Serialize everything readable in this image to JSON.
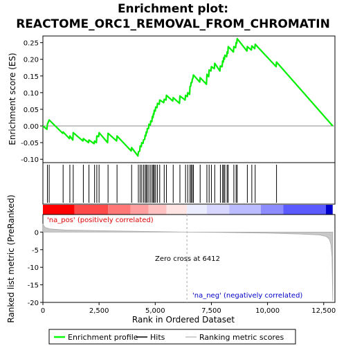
{
  "chart_data": {
    "type": "line",
    "title_line1": "Enrichment plot:",
    "title_line2": "REACTOME_ORC1_REMOVAL_FROM_CHROMATIN",
    "xlabel": "Rank in Ordered Dataset",
    "es_ylabel": "Enrichment score (ES)",
    "metric_ylabel": "Ranked list metric (PreRanked)",
    "xlim": [
      0,
      13000
    ],
    "es_ylim": [
      -0.11,
      0.27
    ],
    "metric_ylim": [
      -20,
      5
    ],
    "x_ticks": [
      0,
      2500,
      5000,
      7500,
      10000,
      12500
    ],
    "x_tick_labels": [
      "0",
      "2,500",
      "5,000",
      "7,500",
      "10,000",
      "12,500"
    ],
    "es_ticks": [
      -0.1,
      -0.05,
      0.0,
      0.05,
      0.1,
      0.15,
      0.2,
      0.25
    ],
    "es_tick_labels": [
      "-0.10",
      "-0.05",
      "0.00",
      "0.05",
      "0.10",
      "0.15",
      "0.20",
      "0.25"
    ],
    "metric_ticks": [
      0,
      -5,
      -10,
      -15,
      -20
    ],
    "metric_tick_labels": [
      "0",
      "-5",
      "-10",
      "-15",
      "-20"
    ],
    "annotations": {
      "pos_label": "'na_pos' (positively correlated)",
      "neg_label": "'na_neg' (negatively correlated)",
      "zero_cross": "Zero cross at 6412"
    },
    "zero_cross": 6412,
    "n_genes": 12900,
    "legend": [
      {
        "label": "Enrichment profile",
        "color": "#00ff00"
      },
      {
        "label": "Hits",
        "color": "#000000"
      },
      {
        "label": "Ranking metric scores",
        "color": "#c0c0c0"
      }
    ],
    "hits": [
      200,
      280,
      900,
      1200,
      1350,
      1800,
      2050,
      2300,
      2400,
      2500,
      2900,
      3300,
      3950,
      4250,
      4330,
      4400,
      4480,
      4550,
      4600,
      4650,
      4720,
      4800,
      4870,
      4920,
      4960,
      5020,
      5100,
      5200,
      5400,
      5500,
      5800,
      6100,
      6350,
      6450,
      6550,
      6600,
      6650,
      6700,
      7000,
      7300,
      7400,
      7500,
      7650,
      7900,
      8000,
      8050,
      8100,
      8200,
      8250,
      8500,
      8600,
      8650,
      9100,
      9300,
      9450,
      10400
    ],
    "es_points": [
      [
        0,
        0.0
      ],
      [
        180,
        -0.01
      ],
      [
        200,
        0.005
      ],
      [
        280,
        0.018
      ],
      [
        880,
        -0.022
      ],
      [
        900,
        -0.018
      ],
      [
        1180,
        -0.038
      ],
      [
        1200,
        -0.03
      ],
      [
        1330,
        -0.042
      ],
      [
        1350,
        -0.02
      ],
      [
        1780,
        -0.045
      ],
      [
        1800,
        -0.038
      ],
      [
        2030,
        -0.05
      ],
      [
        2050,
        -0.042
      ],
      [
        2280,
        -0.053
      ],
      [
        2300,
        -0.045
      ],
      [
        2380,
        -0.05
      ],
      [
        2400,
        -0.03
      ],
      [
        2480,
        -0.032
      ],
      [
        2500,
        -0.02
      ],
      [
        2880,
        -0.05
      ],
      [
        2900,
        -0.022
      ],
      [
        3280,
        -0.045
      ],
      [
        3300,
        -0.03
      ],
      [
        3930,
        -0.075
      ],
      [
        3950,
        -0.065
      ],
      [
        4230,
        -0.09
      ],
      [
        4250,
        -0.078
      ],
      [
        4310,
        -0.075
      ],
      [
        4330,
        -0.06
      ],
      [
        4380,
        -0.062
      ],
      [
        4400,
        -0.05
      ],
      [
        4460,
        -0.052
      ],
      [
        4480,
        -0.042
      ],
      [
        4530,
        -0.04
      ],
      [
        4550,
        -0.028
      ],
      [
        4580,
        -0.03
      ],
      [
        4600,
        -0.018
      ],
      [
        4630,
        -0.02
      ],
      [
        4650,
        -0.008
      ],
      [
        4700,
        -0.008
      ],
      [
        4720,
        0.005
      ],
      [
        4780,
        0.003
      ],
      [
        4800,
        0.015
      ],
      [
        4850,
        0.013
      ],
      [
        4870,
        0.028
      ],
      [
        4900,
        0.025
      ],
      [
        4920,
        0.037
      ],
      [
        4940,
        0.035
      ],
      [
        4960,
        0.047
      ],
      [
        5000,
        0.045
      ],
      [
        5020,
        0.057
      ],
      [
        5080,
        0.055
      ],
      [
        5100,
        0.068
      ],
      [
        5180,
        0.065
      ],
      [
        5200,
        0.078
      ],
      [
        5380,
        0.07
      ],
      [
        5400,
        0.08
      ],
      [
        5480,
        0.078
      ],
      [
        5500,
        0.092
      ],
      [
        5780,
        0.075
      ],
      [
        5800,
        0.085
      ],
      [
        6080,
        0.068
      ],
      [
        6100,
        0.09
      ],
      [
        6330,
        0.078
      ],
      [
        6350,
        0.092
      ],
      [
        6430,
        0.088
      ],
      [
        6450,
        0.1
      ],
      [
        6530,
        0.095
      ],
      [
        6550,
        0.118
      ],
      [
        6580,
        0.12
      ],
      [
        6600,
        0.13
      ],
      [
        6630,
        0.13
      ],
      [
        6650,
        0.14
      ],
      [
        6680,
        0.143
      ],
      [
        6700,
        0.153
      ],
      [
        6980,
        0.132
      ],
      [
        7000,
        0.145
      ],
      [
        7280,
        0.125
      ],
      [
        7300,
        0.155
      ],
      [
        7380,
        0.148
      ],
      [
        7400,
        0.168
      ],
      [
        7480,
        0.165
      ],
      [
        7500,
        0.178
      ],
      [
        7630,
        0.172
      ],
      [
        7650,
        0.188
      ],
      [
        7880,
        0.165
      ],
      [
        7900,
        0.18
      ],
      [
        7980,
        0.178
      ],
      [
        8000,
        0.195
      ],
      [
        8030,
        0.192
      ],
      [
        8050,
        0.205
      ],
      [
        8080,
        0.2
      ],
      [
        8100,
        0.212
      ],
      [
        8180,
        0.208
      ],
      [
        8200,
        0.222
      ],
      [
        8230,
        0.218
      ],
      [
        8250,
        0.238
      ],
      [
        8480,
        0.222
      ],
      [
        8500,
        0.238
      ],
      [
        8580,
        0.235
      ],
      [
        8600,
        0.25
      ],
      [
        8630,
        0.248
      ],
      [
        8650,
        0.262
      ],
      [
        9080,
        0.225
      ],
      [
        9100,
        0.238
      ],
      [
        9280,
        0.228
      ],
      [
        9300,
        0.24
      ],
      [
        9430,
        0.232
      ],
      [
        9450,
        0.245
      ],
      [
        10380,
        0.178
      ],
      [
        10400,
        0.192
      ],
      [
        12900,
        0.0
      ]
    ],
    "metric_points": [
      [
        0,
        2.2
      ],
      [
        100,
        1.3
      ],
      [
        300,
        0.9
      ],
      [
        1000,
        0.6
      ],
      [
        3000,
        0.35
      ],
      [
        4500,
        0.2
      ],
      [
        6412,
        0.0
      ],
      [
        8000,
        -0.1
      ],
      [
        10000,
        -0.3
      ],
      [
        11500,
        -0.55
      ],
      [
        12300,
        -0.8
      ],
      [
        12600,
        -1.2
      ],
      [
        12750,
        -2.0
      ],
      [
        12820,
        -3.5
      ],
      [
        12870,
        -7.0
      ],
      [
        12900,
        -19.5
      ]
    ],
    "colorbar": [
      {
        "from": 0,
        "to": 1400,
        "color": "#ff0000"
      },
      {
        "from": 1400,
        "to": 2900,
        "color": "#ff4a4a"
      },
      {
        "from": 2900,
        "to": 3900,
        "color": "#ff7777"
      },
      {
        "from": 3900,
        "to": 4700,
        "color": "#ff9f9f"
      },
      {
        "from": 4700,
        "to": 5500,
        "color": "#ffc2c2"
      },
      {
        "from": 5500,
        "to": 6412,
        "color": "#ffe4e4"
      },
      {
        "from": 6412,
        "to": 7300,
        "color": "#ececff"
      },
      {
        "from": 7300,
        "to": 8300,
        "color": "#d6d6ff"
      },
      {
        "from": 8300,
        "to": 9700,
        "color": "#bbbbff"
      },
      {
        "from": 9700,
        "to": 10700,
        "color": "#8c8cff"
      },
      {
        "from": 10700,
        "to": 12600,
        "color": "#5a5aff"
      },
      {
        "from": 12600,
        "to": 12900,
        "color": "#0000cc"
      }
    ]
  }
}
